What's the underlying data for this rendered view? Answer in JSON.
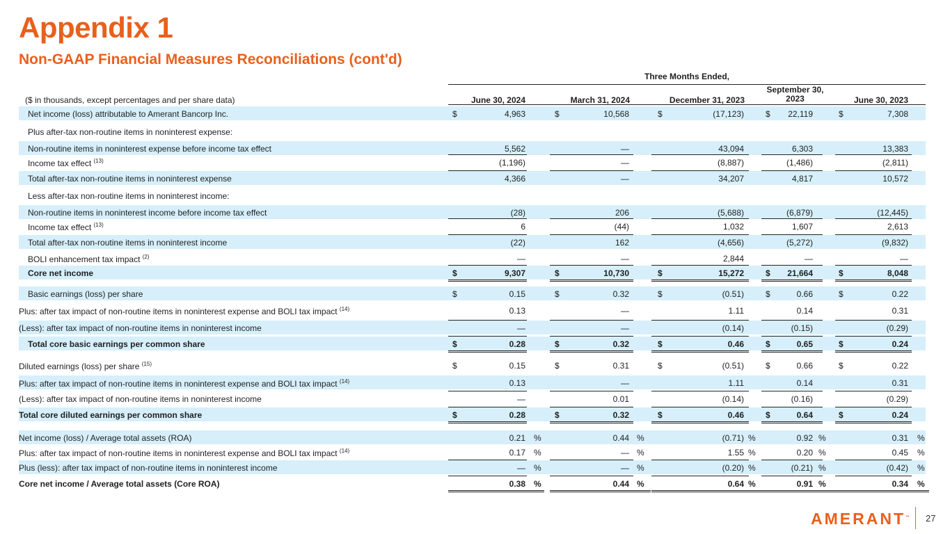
{
  "title": "Appendix 1",
  "subtitle": "Non-GAAP Financial Measures Reconciliations (cont'd)",
  "band": "Three Months Ended,",
  "unit_label": "($ in thousands, except percentages and per share data)",
  "columns": [
    "June 30, 2024",
    "March 31, 2024",
    "December 31, 2023",
    "September 30, 2023",
    "June 30, 2023"
  ],
  "rows": [
    {
      "label": "Net income (loss) attributable to Amerant Bancorp Inc.",
      "sup": "",
      "cur": "$",
      "vals": [
        "4,963",
        "10,568",
        "(17,123)",
        "22,119",
        "7,308"
      ]
    },
    {
      "label": "Plus after-tax non-routine items in noninterest expense:",
      "sup": "",
      "cur": "",
      "vals": [
        "",
        "",
        "",
        "",
        ""
      ]
    },
    {
      "label": "Non-routine items in noninterest expense before income tax effect",
      "sup": "",
      "cur": "",
      "vals": [
        "5,562",
        "—",
        "43,094",
        "6,303",
        "13,383"
      ]
    },
    {
      "label": "Income tax effect",
      "sup": "(13)",
      "cur": "",
      "vals": [
        "(1,196)",
        "—",
        "(8,887)",
        "(1,486)",
        "(2,811)"
      ]
    },
    {
      "label": "Total after-tax non-routine items in noninterest expense",
      "sup": "",
      "cur": "",
      "vals": [
        "4,366",
        "—",
        "34,207",
        "4,817",
        "10,572"
      ]
    },
    {
      "label": "Less after-tax non-routine items in noninterest income:",
      "sup": "",
      "cur": "",
      "vals": [
        "",
        "",
        "",
        "",
        ""
      ]
    },
    {
      "label": "Non-routine items in noninterest income before income tax effect",
      "sup": "",
      "cur": "",
      "vals": [
        "(28)",
        "206",
        "(5,688)",
        "(6,879)",
        "(12,445)"
      ]
    },
    {
      "label": "Income tax effect",
      "sup": "(13)",
      "cur": "",
      "vals": [
        "6",
        "(44)",
        "1,032",
        "1,607",
        "2,613"
      ]
    },
    {
      "label": "Total after-tax non-routine items in noninterest income",
      "sup": "",
      "cur": "",
      "vals": [
        "(22)",
        "162",
        "(4,656)",
        "(5,272)",
        "(9,832)"
      ]
    },
    {
      "label": "BOLI enhancement tax impact",
      "sup": "(2)",
      "cur": "",
      "vals": [
        "—",
        "—",
        "2,844",
        "—",
        "—"
      ]
    },
    {
      "label": "Core net income",
      "sup": "",
      "cur": "$",
      "vals": [
        "9,307",
        "10,730",
        "15,272",
        "21,664",
        "8,048"
      ]
    },
    {
      "label": "Basic earnings (loss) per share",
      "sup": "",
      "cur": "$",
      "vals": [
        "0.15",
        "0.32",
        "(0.51)",
        "0.66",
        "0.22"
      ]
    },
    {
      "label": "Plus: after tax impact of non-routine items in noninterest expense and BOLI tax impact",
      "sup": "(14)",
      "cur": "",
      "vals": [
        "0.13",
        "—",
        "1.11",
        "0.14",
        "0.31"
      ]
    },
    {
      "label": "(Less): after tax impact of non-routine items in noninterest income",
      "sup": "",
      "cur": "",
      "vals": [
        "—",
        "—",
        "(0.14)",
        "(0.15)",
        "(0.29)"
      ]
    },
    {
      "label": "Total core basic earnings per common share",
      "sup": "",
      "cur": "$",
      "vals": [
        "0.28",
        "0.32",
        "0.46",
        "0.65",
        "0.24"
      ]
    },
    {
      "label": "Diluted earnings (loss) per share",
      "sup": "(15)",
      "cur": "$",
      "vals": [
        "0.15",
        "0.31",
        "(0.51)",
        "0.66",
        "0.22"
      ]
    },
    {
      "label": "Plus: after tax impact of non-routine items in noninterest expense and BOLI tax impact",
      "sup": "(14)",
      "cur": "",
      "vals": [
        "0.13",
        "—",
        "1.11",
        "0.14",
        "0.31"
      ]
    },
    {
      "label": "(Less): after tax impact of non-routine items in noninterest income",
      "sup": "",
      "cur": "",
      "vals": [
        "—",
        "0.01",
        "(0.14)",
        "(0.16)",
        "(0.29)"
      ]
    },
    {
      "label": "Total core diluted earnings per common share",
      "sup": "",
      "cur": "$",
      "vals": [
        "0.28",
        "0.32",
        "0.46",
        "0.64",
        "0.24"
      ]
    },
    {
      "label": "Net income (loss) / Average total assets (ROA)",
      "sup": "",
      "cur": "%",
      "vals": [
        "0.21",
        "0.44",
        "(0.71)",
        "0.92",
        "0.31"
      ]
    },
    {
      "label": "Plus: after tax impact of non-routine items in noninterest expense and BOLI tax impact",
      "sup": "(14)",
      "cur": "%",
      "vals": [
        "0.17",
        "—",
        "1.55",
        "0.20",
        "0.45"
      ]
    },
    {
      "label": "Plus (less): after tax impact of non-routine items in noninterest income",
      "sup": "",
      "cur": "%",
      "vals": [
        "—",
        "—",
        "(0.20)",
        "(0.21)",
        "(0.42)"
      ]
    },
    {
      "label": "Core net income / Average total assets (Core ROA)",
      "sup": "",
      "cur": "%",
      "vals": [
        "0.38",
        "0.44",
        "0.64",
        "0.91",
        "0.34"
      ]
    }
  ],
  "logo": "AMERANT",
  "logo_mark": "™",
  "page_number": "27"
}
